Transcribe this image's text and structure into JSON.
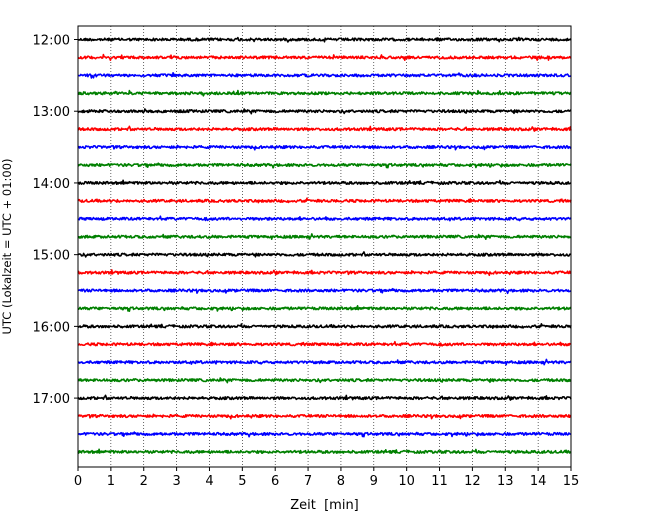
{
  "chart_data": {
    "type": "line",
    "title": "",
    "xlabel": "Zeit  [min]",
    "ylabel": "UTC (Lokalzeit = UTC + 01:00)",
    "xlim": [
      0,
      15
    ],
    "x_ticks": [
      "0",
      "1",
      "2",
      "3",
      "4",
      "5",
      "6",
      "7",
      "8",
      "9",
      "10",
      "11",
      "12",
      "13",
      "14",
      "15"
    ],
    "y_tick_labels": [
      "12:00",
      "13:00",
      "14:00",
      "15:00",
      "16:00",
      "17:00"
    ],
    "grid": "vertical dotted at each minute",
    "traces": [
      {
        "start": "12:00",
        "color": "#000000"
      },
      {
        "start": "12:15",
        "color": "#ff0000"
      },
      {
        "start": "12:30",
        "color": "#0000ff"
      },
      {
        "start": "12:45",
        "color": "#008000"
      },
      {
        "start": "13:00",
        "color": "#000000"
      },
      {
        "start": "13:15",
        "color": "#ff0000"
      },
      {
        "start": "13:30",
        "color": "#0000ff"
      },
      {
        "start": "13:45",
        "color": "#008000"
      },
      {
        "start": "14:00",
        "color": "#000000"
      },
      {
        "start": "14:15",
        "color": "#ff0000"
      },
      {
        "start": "14:30",
        "color": "#0000ff"
      },
      {
        "start": "14:45",
        "color": "#008000"
      },
      {
        "start": "15:00",
        "color": "#000000"
      },
      {
        "start": "15:15",
        "color": "#ff0000"
      },
      {
        "start": "15:30",
        "color": "#0000ff"
      },
      {
        "start": "15:45",
        "color": "#008000"
      },
      {
        "start": "16:00",
        "color": "#000000"
      },
      {
        "start": "16:15",
        "color": "#ff0000"
      },
      {
        "start": "16:30",
        "color": "#0000ff"
      },
      {
        "start": "16:45",
        "color": "#008000"
      },
      {
        "start": "17:00",
        "color": "#000000"
      },
      {
        "start": "17:15",
        "color": "#ff0000"
      },
      {
        "start": "17:30",
        "color": "#0000ff"
      },
      {
        "start": "17:45",
        "color": "#008000"
      }
    ]
  }
}
